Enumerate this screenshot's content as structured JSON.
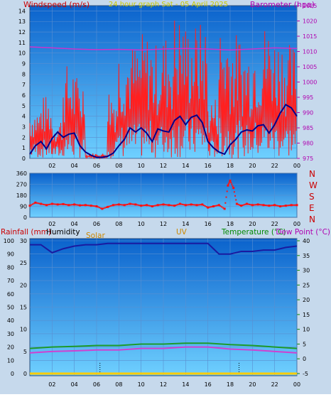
{
  "header": {
    "title": "24 hour graph Sat - 05 April 2025",
    "left_label": "Windspeed (m/s)",
    "right_label": "Barometer (hpa)"
  },
  "direction_panel": {
    "compass_labels": [
      "N",
      "W",
      "S",
      "E",
      "N"
    ]
  },
  "bottom_panel": {
    "labels": {
      "rainfall": "Rainfall (mm)",
      "humidity": "Humidity",
      "solar": "Solar",
      "uv": "UV",
      "temperature": "Temperature (°C)",
      "dewpoint": "Dew Point (°C)"
    }
  },
  "colors": {
    "panel_top": "#0a62cc",
    "panel_bottom": "#6fd0ff",
    "gust": "#ff2020",
    "wind_avg": "#00008b",
    "barometer": "#cc33cc",
    "direction": "#ff1010",
    "humidity": "#1a1aa0",
    "temperature": "#1d9a2a",
    "dewpoint": "#d040d0",
    "rain": "#ffcc00",
    "title": "#c8c800",
    "label_red": "#cc0000",
    "label_magenta": "#b000b0",
    "label_green": "#008800",
    "label_orange": "#cc8800"
  },
  "chart_data": [
    {
      "type": "line",
      "name": "wind_and_pressure",
      "x_ticks": [
        "02",
        "04",
        "06",
        "08",
        "10",
        "12",
        "14",
        "16",
        "18",
        "20",
        "22",
        "00"
      ],
      "y_left_ticks": [
        0,
        1,
        2,
        3,
        4,
        5,
        6,
        7,
        8,
        9,
        10,
        11,
        12,
        13,
        14
      ],
      "ylim_left": [
        0,
        14.5
      ],
      "y_right_ticks": [
        975,
        980,
        985,
        990,
        995,
        1000,
        1005,
        1010,
        1015,
        1020,
        1025
      ],
      "ylim_right": [
        975,
        1025
      ],
      "xlim_hours": [
        0,
        24
      ],
      "series": [
        {
          "role": "gust",
          "hours": [
            0.5,
            1.5,
            2.5,
            3.5,
            4.5,
            5.5,
            6.5,
            7.5,
            8.5,
            9.5,
            10.5,
            11.5,
            12.5,
            13.5,
            14.5,
            15.5,
            16.5,
            17.5,
            18.5,
            19.5,
            20.5,
            21.5,
            22.5,
            23.5
          ],
          "max": [
            5,
            6,
            4,
            9,
            8,
            0.5,
            0.5,
            7,
            11,
            11,
            12,
            11,
            12,
            14,
            13,
            13,
            6,
            13,
            12,
            11,
            12,
            13,
            12,
            11
          ],
          "min": [
            0,
            0,
            0,
            0,
            0,
            0,
            0,
            0,
            0,
            0,
            0,
            0,
            0,
            0,
            0,
            0,
            0,
            0,
            0,
            0,
            0,
            0,
            0,
            0
          ]
        },
        {
          "role": "average",
          "hours": [
            0,
            0.5,
            1,
            1.5,
            2,
            2.5,
            3,
            3.5,
            4,
            4.5,
            5,
            5.5,
            6,
            6.5,
            7,
            7.5,
            8,
            8.5,
            9,
            9.5,
            10,
            10.5,
            11,
            11.5,
            12,
            12.5,
            13,
            13.5,
            14,
            14.5,
            15,
            15.5,
            16,
            16.5,
            17,
            17.5,
            18,
            18.5,
            19,
            19.5,
            20,
            20.5,
            21,
            21.5,
            22,
            22.5,
            23,
            23.5,
            24
          ],
          "values": [
            0.4,
            1.2,
            1.6,
            0.9,
            1.9,
            2.5,
            2.0,
            2.3,
            2.4,
            1.2,
            0.6,
            0.3,
            0.1,
            0.1,
            0.2,
            0.5,
            1.2,
            1.8,
            2.9,
            2.5,
            2.9,
            2.4,
            1.6,
            2.8,
            2.6,
            2.5,
            3.6,
            4.0,
            3.2,
            3.9,
            4.1,
            3.4,
            1.6,
            1.0,
            0.6,
            0.4,
            1.3,
            1.8,
            2.5,
            2.7,
            2.6,
            3.1,
            3.2,
            2.4,
            3.2,
            4.3,
            5.1,
            4.8,
            4.0
          ]
        },
        {
          "role": "barometer",
          "hours": [
            0,
            2,
            4,
            6,
            8,
            10,
            12,
            14,
            16,
            18,
            20,
            22,
            24
          ],
          "values": [
            1011.5,
            1011.2,
            1010.8,
            1010.6,
            1010.7,
            1010.5,
            1010.8,
            1011.0,
            1010.8,
            1010.5,
            1010.8,
            1011.2,
            1011.0
          ]
        }
      ]
    },
    {
      "type": "scatter",
      "name": "wind_direction",
      "x_ticks": [
        "02",
        "04",
        "06",
        "08",
        "10",
        "12",
        "14",
        "16",
        "18",
        "20",
        "22",
        "00"
      ],
      "y_ticks": [
        0,
        90,
        180,
        270,
        360
      ],
      "ylim": [
        0,
        360
      ],
      "xlim_hours": [
        0,
        24
      ],
      "hours": [
        0,
        0.5,
        1,
        1.5,
        2,
        2.5,
        3,
        3.5,
        4,
        4.5,
        5,
        5.5,
        6,
        6.5,
        7,
        7.5,
        8,
        8.5,
        9,
        9.5,
        10,
        10.5,
        11,
        11.5,
        12,
        12.5,
        13,
        13.5,
        14,
        14.5,
        15,
        15.5,
        16,
        16.5,
        17,
        17.5,
        17.8,
        18,
        18.3,
        18.6,
        19,
        19.5,
        20,
        20.5,
        21,
        21.5,
        22,
        22.5,
        23,
        23.5,
        24
      ],
      "degrees": [
        95,
        120,
        110,
        100,
        110,
        105,
        108,
        100,
        105,
        98,
        100,
        95,
        90,
        70,
        85,
        100,
        105,
        100,
        110,
        105,
        95,
        100,
        90,
        100,
        105,
        100,
        95,
        110,
        100,
        105,
        100,
        105,
        80,
        90,
        100,
        70,
        260,
        300,
        240,
        110,
        95,
        110,
        100,
        105,
        100,
        95,
        100,
        90,
        95,
        100,
        100
      ]
    },
    {
      "type": "line",
      "name": "humidity_temperature",
      "x_ticks": [
        "02",
        "04",
        "06",
        "08",
        "10",
        "12",
        "14",
        "16",
        "18",
        "20",
        "22",
        "00"
      ],
      "y_left_outer_ticks": [
        0,
        10,
        20,
        30,
        40,
        50,
        60,
        70,
        80,
        90,
        100
      ],
      "ylim_left_outer": [
        0,
        100
      ],
      "y_left_inner_ticks": [
        0,
        5,
        10,
        15,
        20,
        25,
        30
      ],
      "ylim_left_inner": [
        0,
        30
      ],
      "y_right_ticks": [
        -5,
        0,
        5,
        10,
        15,
        20,
        25,
        30,
        35,
        40
      ],
      "ylim_right": [
        -5,
        40
      ],
      "xlim_hours": [
        0,
        24
      ],
      "markers_hours": [
        6.3,
        18.8
      ],
      "series": [
        {
          "role": "humidity",
          "hours": [
            0,
            1,
            2,
            3,
            4,
            5,
            6,
            7,
            8,
            9,
            10,
            11,
            12,
            13,
            14,
            15,
            16,
            17,
            18,
            19,
            20,
            21,
            22,
            23,
            24
          ],
          "values": [
            97,
            97,
            91,
            94,
            96,
            97,
            97,
            98,
            98,
            98,
            98,
            98,
            98,
            98,
            98,
            98,
            98,
            90,
            90,
            92,
            92,
            93,
            93,
            95,
            96
          ]
        },
        {
          "role": "temperature",
          "hours": [
            0,
            2,
            4,
            6,
            8,
            10,
            12,
            14,
            16,
            18,
            20,
            22,
            24
          ],
          "values": [
            3.5,
            4.0,
            4.2,
            4.5,
            4.5,
            5.0,
            5.0,
            5.3,
            5.3,
            4.8,
            4.5,
            4.0,
            3.5
          ]
        },
        {
          "role": "dewpoint",
          "hours": [
            0,
            2,
            4,
            6,
            8,
            10,
            12,
            14,
            16,
            18,
            20,
            22,
            24
          ],
          "values": [
            2.0,
            2.5,
            2.7,
            3.0,
            3.0,
            3.5,
            3.5,
            4.0,
            4.0,
            3.3,
            3.0,
            2.5,
            2.0
          ]
        },
        {
          "role": "rain",
          "hours": [
            0,
            24
          ],
          "values": [
            0,
            0
          ]
        }
      ]
    }
  ]
}
